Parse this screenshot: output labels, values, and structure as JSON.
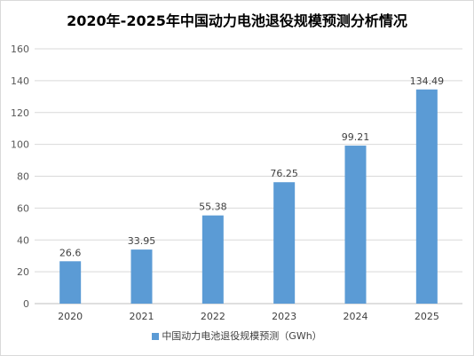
{
  "chart_data": {
    "type": "bar",
    "title": "2020年-2025年中国动力电池退役规模预测分析情况",
    "categories": [
      "2020",
      "2021",
      "2022",
      "2023",
      "2024",
      "2025"
    ],
    "series": [
      {
        "name": "中国动力电池退役规模预测（GWh）",
        "values": [
          26.6,
          33.95,
          55.38,
          76.25,
          99.21,
          134.49
        ]
      }
    ],
    "data_labels": [
      "26.6",
      "33.95",
      "55.38",
      "76.25",
      "99.21",
      "134.49"
    ],
    "ylim": [
      0,
      160
    ],
    "yticks": [
      0,
      20,
      40,
      60,
      80,
      100,
      120,
      140,
      160
    ],
    "grid": true,
    "legend_position": "bottom",
    "bar_color": "#5b9bd5",
    "grid_color": "#d9d9d9"
  }
}
